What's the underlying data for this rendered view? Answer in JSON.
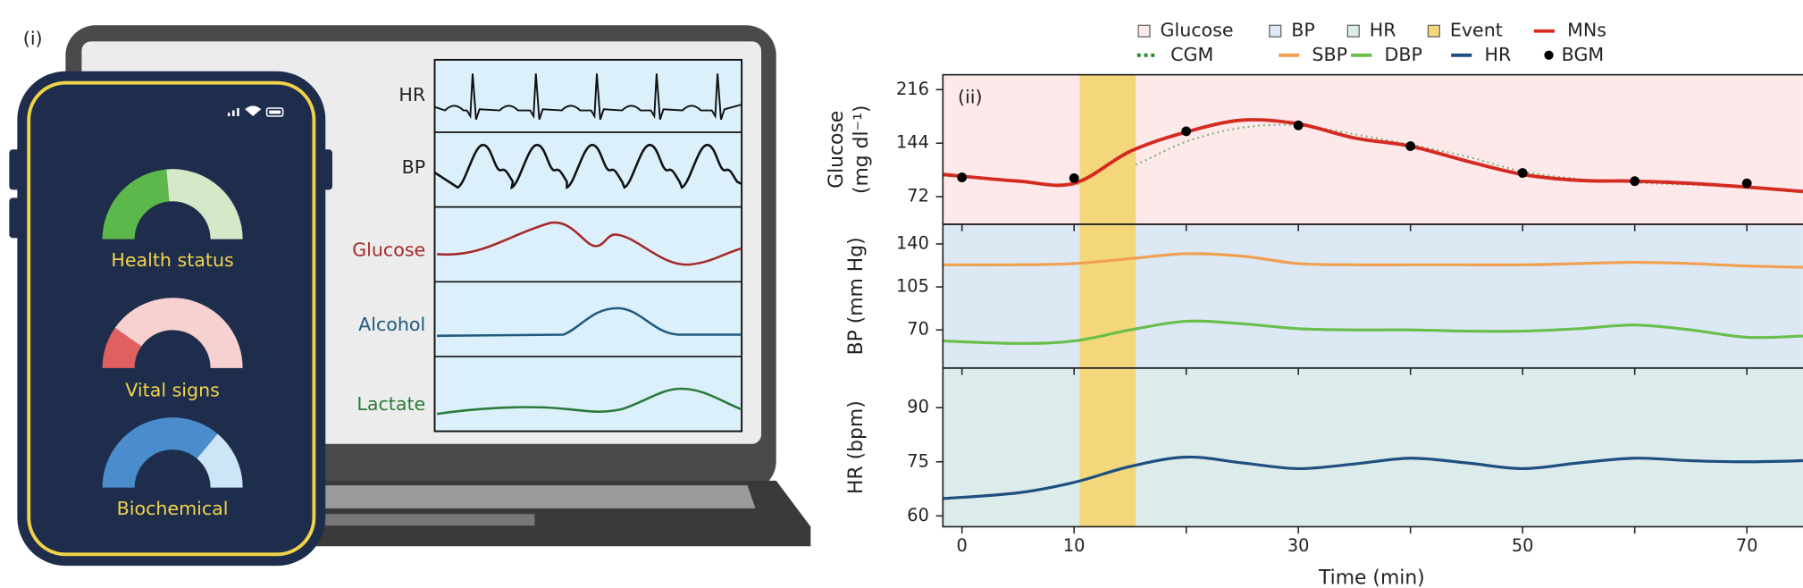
{
  "panel_i": {
    "label": "(i)",
    "screen_labels": [
      "HR",
      "BP",
      "Glucose",
      "Alcohol",
      "Lactate"
    ],
    "gauges": [
      "Health status",
      "Vital signs",
      "Biochemical"
    ]
  },
  "chart_data": [
    {
      "type": "line",
      "label": "(ii)",
      "ylabel": [
        "Glucose",
        "(mg dl⁻¹)"
      ],
      "background": {
        "name": "Glucose",
        "color": "#fde9e9"
      },
      "event": {
        "name": "Event",
        "x": [
          10.5,
          15.5
        ],
        "color": "#f3d77a"
      },
      "xlim": [
        -1.7,
        75
      ],
      "ylim": [
        35,
        236
      ],
      "yticks": [
        72,
        144,
        216
      ],
      "x": [
        -1.7,
        5,
        10,
        15,
        20,
        25,
        30,
        35,
        40,
        45,
        50,
        55,
        60,
        65,
        70,
        75
      ],
      "series": [
        {
          "name": "MNs",
          "color": "#d42a22",
          "values": [
            102,
            93,
            90,
            133,
            159,
            175,
            170,
            151,
            140,
            120,
            102,
            94,
            93,
            90,
            85,
            79
          ]
        },
        {
          "name": "CGM",
          "color": "#1a8a2a",
          "dash": "dotted",
          "values": [
            100,
            94,
            88,
            112,
            146,
            165,
            168,
            156,
            142,
            126,
            106,
            96,
            91,
            88,
            86,
            80
          ]
        },
        {
          "name": "BGM",
          "color": "#000000",
          "mode": "markers",
          "x": [
            0,
            10,
            20,
            30,
            40,
            50,
            60,
            70
          ],
          "values": [
            98,
            97,
            160,
            168,
            140,
            104,
            93,
            90
          ]
        }
      ]
    },
    {
      "type": "line",
      "ylabel": [
        "BP (mm Hg)"
      ],
      "background": {
        "name": "BP",
        "color": "#dce8f4"
      },
      "xlim": [
        -1.7,
        75
      ],
      "ylim": [
        39,
        156
      ],
      "yticks": [
        70,
        105,
        140
      ],
      "x": [
        -1.7,
        5,
        10,
        15,
        20,
        25,
        30,
        35,
        40,
        45,
        50,
        55,
        60,
        65,
        70,
        75
      ],
      "series": [
        {
          "name": "SBP",
          "color": "#f0a050",
          "values": [
            123,
            123,
            124,
            128,
            132,
            130,
            124,
            123,
            123,
            123,
            123,
            124,
            125,
            124,
            122,
            121
          ]
        },
        {
          "name": "DBP",
          "color": "#6abf4b",
          "values": [
            61,
            59,
            61,
            70,
            77,
            75,
            71,
            70,
            70,
            69,
            69,
            71,
            74,
            70,
            64,
            65
          ]
        }
      ]
    },
    {
      "type": "line",
      "ylabel": [
        "HR (bpm)"
      ],
      "xlabel": "Time (min)",
      "background": {
        "name": "HR",
        "color": "#dbecea"
      },
      "xlim": [
        -1.7,
        75
      ],
      "ylim": [
        57,
        101
      ],
      "yticks": [
        60,
        75,
        90
      ],
      "xticks": [
        0,
        10,
        30,
        50,
        70
      ],
      "xminorticks": [
        20,
        40,
        60
      ],
      "x": [
        -1.7,
        5,
        10,
        15,
        20,
        25,
        30,
        35,
        40,
        45,
        50,
        55,
        60,
        65,
        70,
        75
      ],
      "series": [
        {
          "name": "HR",
          "color": "#1f4f80",
          "values": [
            64.8,
            66.4,
            69.3,
            73.7,
            76.3,
            74.7,
            73.1,
            74.4,
            76,
            74.7,
            73.1,
            74.7,
            76,
            75.3,
            75,
            75.3
          ]
        }
      ]
    }
  ]
}
